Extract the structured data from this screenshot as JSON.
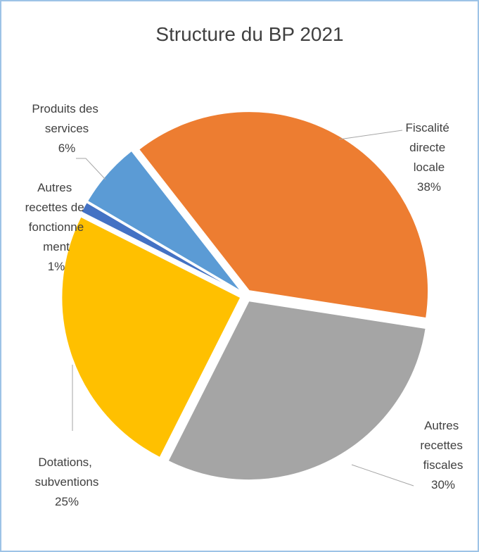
{
  "chart_data": {
    "type": "pie",
    "title": "Structure du BP 2021",
    "categories": [
      "Fiscalité directe locale",
      "Autres recettes fiscales",
      "Dotations, subventions",
      "Autres recettes de fonctionnement",
      "Produits des services"
    ],
    "values": [
      38,
      30,
      25,
      1,
      6
    ],
    "value_labels": [
      "38%",
      "30%",
      "25%",
      "1%",
      "6%"
    ],
    "colors": [
      "#ed7d31",
      "#a5a5a5",
      "#ffc000",
      "#4472c4",
      "#5b9bd5"
    ]
  }
}
